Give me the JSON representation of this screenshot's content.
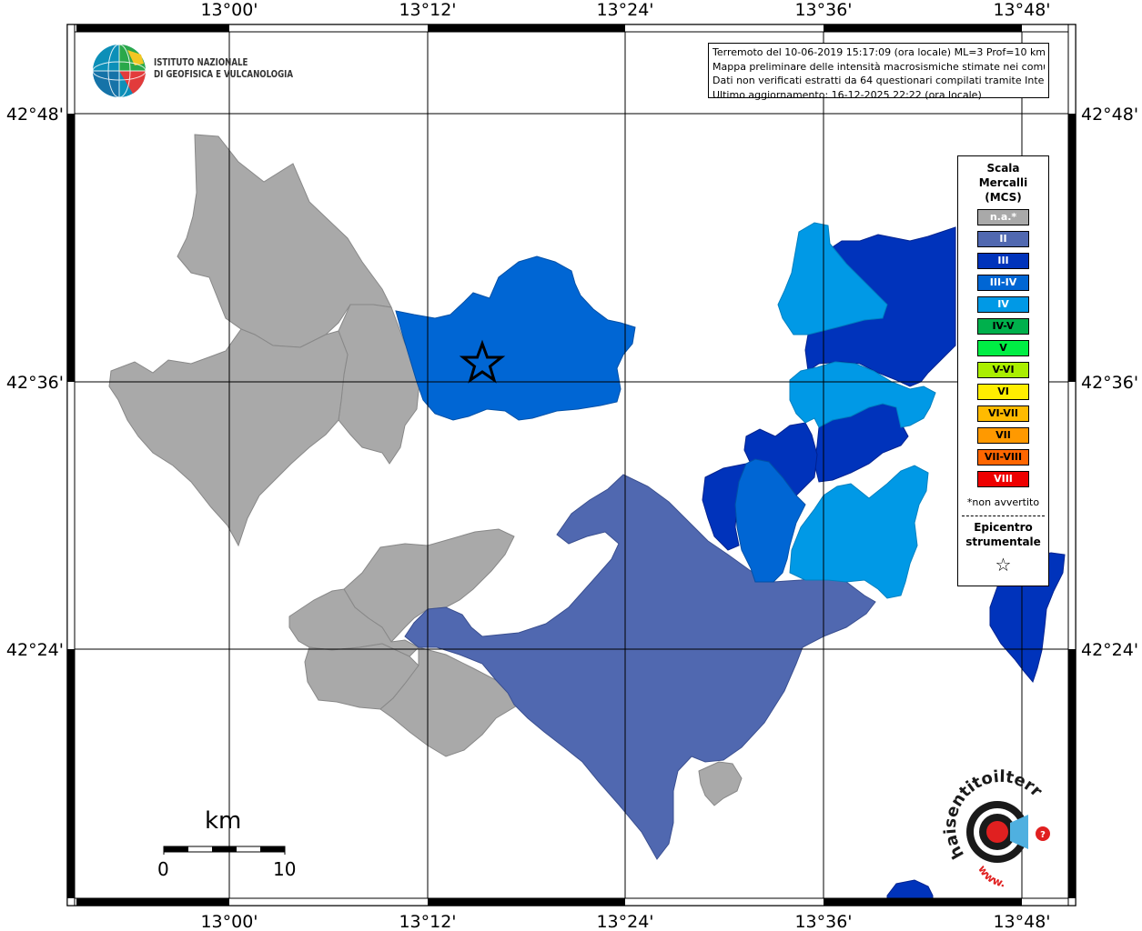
{
  "map": {
    "longitude_labels": [
      "13°00'",
      "13°12'",
      "13°24'",
      "13°36'",
      "13°48'"
    ],
    "latitude_labels": [
      "42°48'",
      "42°36'",
      "42°24'"
    ]
  },
  "ingv": {
    "line1": "ISTITUTO NAZIONALE",
    "line2": "DI GEOFISICA E VULCANOLOGIA"
  },
  "info": {
    "line1": "Terremoto del 10-06-2019 15:17:09 (ora locale) ML=3 Prof=10 km",
    "line2": "Mappa preliminare delle intensità macrosismiche stimate nei comuni",
    "line3": "Dati non verificati estratti da 64 questionari compilati tramite Internet.",
    "line4": "Ultimo aggiornamento: 16-12-2025 22:22 (ora locale)"
  },
  "legend": {
    "title1": "Scala",
    "title2": "Mercalli",
    "title3": "(MCS)",
    "items": [
      {
        "label": "n.a.*",
        "color": "#a9a9a9",
        "text_color": "#ffffff"
      },
      {
        "label": "II",
        "color": "#5068b0",
        "text_color": "#ffffff"
      },
      {
        "label": "III",
        "color": "#0033bb",
        "text_color": "#ffffff"
      },
      {
        "label": "III-IV",
        "color": "#0066d4",
        "text_color": "#ffffff"
      },
      {
        "label": "IV",
        "color": "#0099e6",
        "text_color": "#ffffff"
      },
      {
        "label": "IV-V",
        "color": "#00b04c",
        "text_color": "#000000"
      },
      {
        "label": "V",
        "color": "#00ee44",
        "text_color": "#000000"
      },
      {
        "label": "V-VI",
        "color": "#aaee00",
        "text_color": "#000000"
      },
      {
        "label": "VI",
        "color": "#ffee00",
        "text_color": "#000000"
      },
      {
        "label": "VI-VII",
        "color": "#ffbb00",
        "text_color": "#000000"
      },
      {
        "label": "VII",
        "color": "#ff9900",
        "text_color": "#000000"
      },
      {
        "label": "VII-VIII",
        "color": "#ff6600",
        "text_color": "#000000"
      },
      {
        "label": "VIII",
        "color": "#ee0000",
        "text_color": "#ffffff"
      }
    ],
    "note": "*non avvertito",
    "epicenter1": "Epicentro",
    "epicenter2": "strumentale",
    "star_symbol": "☆"
  },
  "scale_bar": {
    "unit": "km",
    "start": "0",
    "end": "10"
  },
  "hsit": {
    "text": "haisentitoilterremoto.it",
    "www": "www."
  },
  "colors": {
    "na": "#a9a9a9",
    "ii": "#5068b0",
    "iii": "#0033bb",
    "iii_iv": "#0066d4",
    "iv": "#0099e6"
  }
}
